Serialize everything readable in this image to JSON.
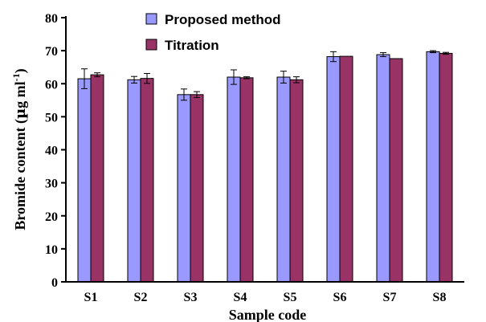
{
  "chart_data": {
    "type": "bar",
    "categories": [
      "S1",
      "S2",
      "S3",
      "S4",
      "S5",
      "S6",
      "S7",
      "S8"
    ],
    "series": [
      {
        "name": "Proposed method",
        "color": "#9999ff",
        "values": [
          61.5,
          61.2,
          56.7,
          62.0,
          62.0,
          68.2,
          68.8,
          69.7
        ],
        "errors": [
          3.0,
          1.0,
          1.7,
          2.2,
          1.8,
          1.5,
          0.6,
          0.3
        ]
      },
      {
        "name": "Titration",
        "color": "#993366",
        "values": [
          62.7,
          61.6,
          56.7,
          61.8,
          61.2,
          68.3,
          67.6,
          69.2
        ],
        "errors": [
          0.6,
          1.5,
          0.9,
          0.3,
          0.9,
          0.0,
          0.0,
          0.3
        ]
      }
    ],
    "xlabel": "Sample code",
    "ylabel_main": "Bromide content (",
    "ylabel_mu": "µ",
    "ylabel_unit": "g ml",
    "ylabel_exp": "-1",
    "ylabel_close": ")",
    "yticks": [
      "0",
      "10",
      "20",
      "30",
      "40",
      "50",
      "60",
      "70",
      "80"
    ],
    "ylim": [
      0,
      80
    ],
    "error_bars": true,
    "grid": false,
    "legend_position": "top-center"
  }
}
